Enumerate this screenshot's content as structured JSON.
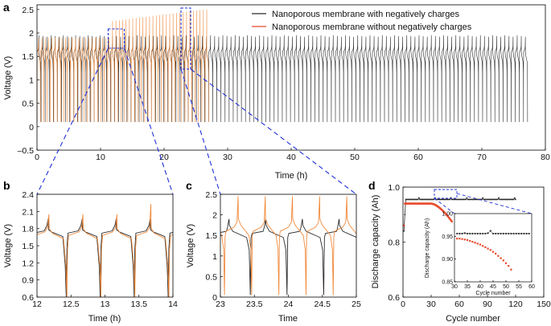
{
  "colors": {
    "black_series": "#2b2b2b",
    "orange_series": "#f08a3c",
    "red_marker": "#e8492b",
    "zoom_box": "#1f2fd6"
  },
  "chart_data": [
    {
      "panel": "a",
      "type": "line",
      "xlabel": "Time (h)",
      "ylabel": "Voltage (V)",
      "xlim": [
        0,
        80
      ],
      "ylim": [
        -0.5,
        2.6
      ],
      "xticks": [
        "0",
        "10",
        "20",
        "30",
        "40",
        "50",
        "60",
        "70",
        "80"
      ],
      "yticks": [
        "–0.5",
        "0",
        "0.5",
        "1",
        "1.5",
        "2",
        "2.5"
      ],
      "series": [
        {
          "name": "Nanoporous membrane with negatively charges",
          "color": "#2b2b2b",
          "time_range_h": [
            0,
            77.2
          ],
          "cycles": 120,
          "v_min": 0.1,
          "v_max": 1.95
        },
        {
          "name": "Nanoporous membrane without negatively charges",
          "color": "#f08a3c",
          "time_range_h": [
            0,
            27
          ],
          "cycles": 51,
          "v_min": 0.1,
          "v_max_start": 1.9,
          "v_max_end": 2.5
        }
      ],
      "zoom_regions": [
        {
          "x": [
            11.2,
            13.7
          ],
          "y": [
            1.65,
            2.05
          ]
        },
        {
          "x": [
            22.8,
            24.3
          ],
          "y": [
            1.2,
            2.55
          ]
        }
      ]
    },
    {
      "panel": "b",
      "type": "line",
      "xlabel": "Time (h)",
      "ylabel": "Voltage (V)",
      "xlim": [
        12,
        14
      ],
      "ylim": [
        0.6,
        2.4
      ],
      "xticks": [
        "12",
        "12.5",
        "13",
        "13.5",
        "14"
      ],
      "yticks": [
        "0.6",
        "0.9",
        "1.2",
        "1.5",
        "1.8",
        "2.1",
        "2.4"
      ],
      "series": [
        {
          "name": "with",
          "color": "#2b2b2b"
        },
        {
          "name": "without",
          "color": "#f08a3c"
        }
      ]
    },
    {
      "panel": "c",
      "type": "line",
      "xlabel": "Time",
      "ylabel": "Voltage (V)",
      "xlim": [
        23,
        25
      ],
      "ylim": [
        0,
        2.5
      ],
      "xticks": [
        "23",
        "23.5",
        "24",
        "24.5",
        "25"
      ],
      "yticks": [
        "0",
        "0.5",
        "1",
        "1.5",
        "2",
        "2.5"
      ],
      "series": [
        {
          "name": "with",
          "color": "#2b2b2b"
        },
        {
          "name": "without",
          "color": "#f08a3c"
        }
      ]
    },
    {
      "panel": "d",
      "type": "scatter",
      "xlabel": "Cycle number",
      "ylabel": "Discharge capacity (Ah)",
      "xlim": [
        0,
        150
      ],
      "ylim": [
        0.6,
        1.0
      ],
      "xticks": [
        "0",
        "30",
        "60",
        "90",
        "120",
        "150"
      ],
      "yticks": [
        "0.6",
        "0.8",
        "1.0"
      ],
      "series": [
        {
          "name": "with",
          "color": "#2b2b2b",
          "cycles": [
            1,
            120
          ],
          "capacity_start": 0.84,
          "capacity_plateau": 0.955
        },
        {
          "name": "without",
          "color": "#e8492b",
          "cycles": [
            1,
            52
          ],
          "capacity_start": 0.86,
          "capacity_plateau": 0.94,
          "capacity_end": 0.875
        }
      ],
      "inset": {
        "xlabel": "Cycle number",
        "ylabel": "Discharge capacity (Ah)",
        "xlim": [
          30,
          60
        ],
        "ylim": [
          0.85,
          1.0
        ],
        "xticks": [
          "30",
          "35",
          "40",
          "45",
          "50",
          "55",
          "60"
        ],
        "yticks": [
          "0.85",
          "0.90",
          "0.95",
          "1.00"
        ],
        "black_points": [
          [
            31,
            0.956
          ],
          [
            32,
            0.956
          ],
          [
            33,
            0.956
          ],
          [
            34,
            0.957
          ],
          [
            35,
            0.956
          ],
          [
            36,
            0.956
          ],
          [
            37,
            0.956
          ],
          [
            38,
            0.956
          ],
          [
            39,
            0.956
          ],
          [
            40,
            0.956
          ],
          [
            41,
            0.956
          ],
          [
            42,
            0.956
          ],
          [
            43,
            0.957
          ],
          [
            44,
            0.962
          ],
          [
            45,
            0.956
          ],
          [
            46,
            0.956
          ],
          [
            47,
            0.956
          ],
          [
            48,
            0.956
          ],
          [
            49,
            0.956
          ],
          [
            50,
            0.956
          ],
          [
            51,
            0.956
          ],
          [
            52,
            0.956
          ],
          [
            53,
            0.956
          ],
          [
            54,
            0.956
          ],
          [
            55,
            0.956
          ],
          [
            56,
            0.956
          ],
          [
            57,
            0.956
          ],
          [
            58,
            0.956
          ],
          [
            59,
            0.956
          ]
        ],
        "red_points": [
          [
            31,
            0.945
          ],
          [
            32,
            0.945
          ],
          [
            33,
            0.944
          ],
          [
            34,
            0.943
          ],
          [
            35,
            0.942
          ],
          [
            36,
            0.94
          ],
          [
            37,
            0.938
          ],
          [
            38,
            0.936
          ],
          [
            39,
            0.934
          ],
          [
            40,
            0.932
          ],
          [
            41,
            0.929
          ],
          [
            42,
            0.926
          ],
          [
            43,
            0.923
          ],
          [
            44,
            0.92
          ],
          [
            45,
            0.916
          ],
          [
            46,
            0.912
          ],
          [
            47,
            0.907
          ],
          [
            48,
            0.902
          ],
          [
            49,
            0.897
          ],
          [
            50,
            0.891
          ],
          [
            51,
            0.885
          ],
          [
            52,
            0.877
          ]
        ]
      }
    }
  ],
  "panels": {
    "a": "a",
    "b": "b",
    "c": "c",
    "d": "d"
  },
  "legend": {
    "with": "Nanoporous membrane with negatively charges",
    "without": "Nanoporous membrane without negatively charges"
  }
}
